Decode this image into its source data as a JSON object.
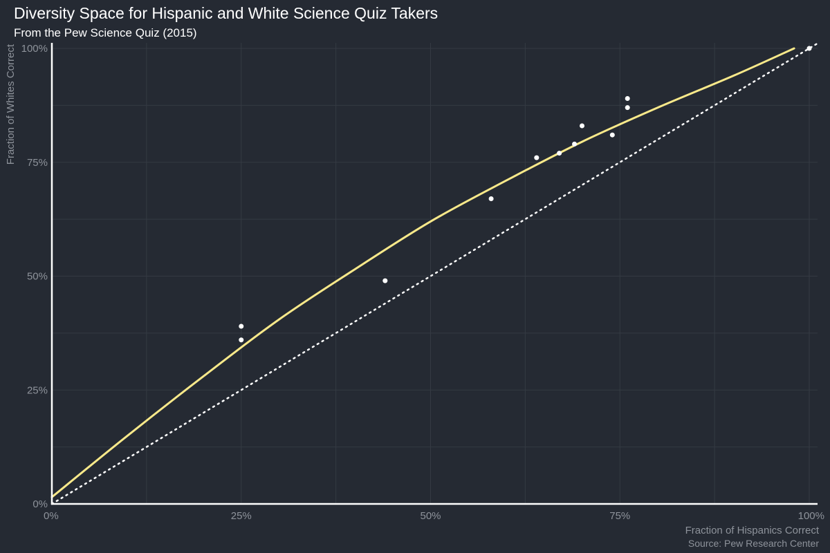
{
  "chart_data": {
    "type": "scatter",
    "title": "Diversity Space for Hispanic and White Science Quiz Takers",
    "subtitle": "From the Pew Science Quiz (2015)",
    "xlabel": "Fraction of Hispanics Correct",
    "ylabel": "Fraction of Whites Correct",
    "caption": "Source: Pew Research Center",
    "xlim": [
      0,
      1
    ],
    "ylim": [
      0,
      1
    ],
    "x_ticks": [
      {
        "value": 0,
        "label": "0%"
      },
      {
        "value": 0.25,
        "label": "25%"
      },
      {
        "value": 0.5,
        "label": "50%"
      },
      {
        "value": 0.75,
        "label": "75%"
      },
      {
        "value": 1,
        "label": "100%"
      }
    ],
    "y_ticks": [
      {
        "value": 0,
        "label": "0%"
      },
      {
        "value": 0.25,
        "label": "25%"
      },
      {
        "value": 0.5,
        "label": "50%"
      },
      {
        "value": 0.75,
        "label": "75%"
      },
      {
        "value": 1,
        "label": "100%"
      }
    ],
    "grid": true,
    "colors": {
      "background": "#252a33",
      "points": "#ffffff",
      "curve": "#f9e98a",
      "reference_line": "#ffffff",
      "axis_line": "#ffffff",
      "grid": "#353a43"
    },
    "points": [
      {
        "x": 0.25,
        "y": 0.39
      },
      {
        "x": 0.25,
        "y": 0.36
      },
      {
        "x": 0.44,
        "y": 0.49
      },
      {
        "x": 0.58,
        "y": 0.67
      },
      {
        "x": 0.64,
        "y": 0.76
      },
      {
        "x": 0.67,
        "y": 0.77
      },
      {
        "x": 0.69,
        "y": 0.79
      },
      {
        "x": 0.7,
        "y": 0.83
      },
      {
        "x": 0.74,
        "y": 0.81
      },
      {
        "x": 0.76,
        "y": 0.89
      },
      {
        "x": 0.76,
        "y": 0.87
      },
      {
        "x": 1.0,
        "y": 1.0
      }
    ],
    "fitted_curve": {
      "style": "solid",
      "x": [
        0,
        0.1,
        0.2,
        0.3,
        0.4,
        0.5,
        0.6,
        0.7,
        0.8,
        0.9,
        0.98
      ],
      "y": [
        0.015,
        0.15,
        0.28,
        0.405,
        0.515,
        0.62,
        0.71,
        0.795,
        0.87,
        0.94,
        1.0
      ]
    },
    "reference_line": {
      "style": "dotted",
      "x": [
        0,
        1.01
      ],
      "y": [
        0,
        1.01
      ]
    }
  }
}
